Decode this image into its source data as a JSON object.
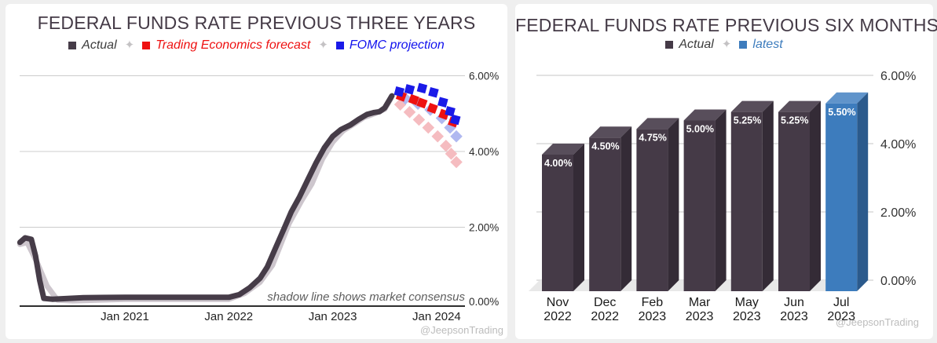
{
  "page": {
    "background_color": "#efefef",
    "card_color": "#ffffff",
    "watermark": "@JeepsonTrading",
    "legend_separator": "✦"
  },
  "chart_data": [
    {
      "type": "line",
      "title": "FEDERAL FUNDS RATE PREVIOUS THREE YEARS",
      "annotation": "shadow line shows market consensus",
      "legend": [
        {
          "label": "Actual",
          "marker_color": "#463c48",
          "text_color": "#3c3c3c"
        },
        {
          "label": "Trading Economics forecast",
          "marker_color": "#ee1111",
          "text_color": "#ee1111"
        },
        {
          "label": "FOMC projection",
          "marker_color": "#1a1ae8",
          "text_color": "#1111ee"
        }
      ],
      "xlabel": "",
      "ylabel": "",
      "ylim": [
        0,
        6.4
      ],
      "x_ticks": [
        {
          "year": 2021,
          "label": "Jan 2021"
        },
        {
          "year": 2022,
          "label": "Jan 2022"
        },
        {
          "year": 2023,
          "label": "Jan 2023"
        },
        {
          "year": 2024,
          "label": "Jan 2024"
        }
      ],
      "y_ticks": [
        {
          "pct": 6,
          "label": "6.00%"
        },
        {
          "pct": 4,
          "label": "4.00%"
        },
        {
          "pct": 2,
          "label": "2.00%"
        },
        {
          "pct": 0,
          "label": "0.00%"
        }
      ],
      "grid_color": "#cccccc",
      "axis_color": "#2e2e2e",
      "series": [
        {
          "name": "market consensus shadow",
          "kind": "line",
          "color": "#cdc6cd",
          "width": 7,
          "points": [
            [
              2019.99,
              1.55
            ],
            [
              2020.06,
              1.6
            ],
            [
              2020.15,
              1.1
            ],
            [
              2020.25,
              0.45
            ],
            [
              2020.35,
              0.08
            ],
            [
              2020.5,
              0.06
            ],
            [
              2021.0,
              0.1
            ],
            [
              2021.5,
              0.1
            ],
            [
              2022.0,
              0.1
            ],
            [
              2022.15,
              0.25
            ],
            [
              2022.3,
              0.55
            ],
            [
              2022.42,
              1.0
            ],
            [
              2022.5,
              1.55
            ],
            [
              2022.58,
              2.1
            ],
            [
              2022.7,
              2.7
            ],
            [
              2022.8,
              3.15
            ],
            [
              2022.9,
              3.8
            ],
            [
              2023.0,
              4.25
            ],
            [
              2023.1,
              4.55
            ],
            [
              2023.2,
              4.72
            ],
            [
              2023.3,
              4.9
            ],
            [
              2023.4,
              5.0
            ],
            [
              2023.5,
              5.12
            ],
            [
              2023.56,
              5.4
            ]
          ]
        },
        {
          "name": "Actual",
          "kind": "line",
          "color": "#463c48",
          "width": 7,
          "points": [
            [
              2019.99,
              1.6
            ],
            [
              2020.04,
              1.72
            ],
            [
              2020.1,
              1.68
            ],
            [
              2020.14,
              1.25
            ],
            [
              2020.18,
              0.6
            ],
            [
              2020.22,
              0.12
            ],
            [
              2020.3,
              0.1
            ],
            [
              2020.6,
              0.14
            ],
            [
              2021.0,
              0.15
            ],
            [
              2021.5,
              0.15
            ],
            [
              2022.0,
              0.15
            ],
            [
              2022.1,
              0.22
            ],
            [
              2022.2,
              0.4
            ],
            [
              2022.3,
              0.65
            ],
            [
              2022.37,
              0.95
            ],
            [
              2022.45,
              1.45
            ],
            [
              2022.53,
              1.95
            ],
            [
              2022.6,
              2.4
            ],
            [
              2022.68,
              2.8
            ],
            [
              2022.76,
              3.25
            ],
            [
              2022.84,
              3.7
            ],
            [
              2022.92,
              4.1
            ],
            [
              2023.0,
              4.4
            ],
            [
              2023.08,
              4.58
            ],
            [
              2023.17,
              4.7
            ],
            [
              2023.25,
              4.85
            ],
            [
              2023.33,
              4.98
            ],
            [
              2023.4,
              5.03
            ],
            [
              2023.45,
              5.05
            ],
            [
              2023.5,
              5.15
            ],
            [
              2023.54,
              5.33
            ],
            [
              2023.57,
              5.47
            ]
          ]
        },
        {
          "name": "market consensus forecast",
          "kind": "scatter",
          "marker": "diamond",
          "color": "#f5bcc0",
          "size": 11,
          "rot": 45,
          "points": [
            [
              2023.65,
              5.24
            ],
            [
              2023.74,
              5.04
            ],
            [
              2023.83,
              4.84
            ],
            [
              2023.92,
              4.63
            ],
            [
              2024.01,
              4.4
            ],
            [
              2024.09,
              4.15
            ],
            [
              2024.14,
              3.94
            ],
            [
              2024.19,
              3.72
            ]
          ]
        },
        {
          "name": "FOMC projection shadow",
          "kind": "scatter",
          "marker": "diamond",
          "color": "#b0b8f0",
          "size": 11,
          "rot": 45,
          "points": [
            [
              2023.7,
              5.4
            ],
            [
              2023.82,
              5.26
            ],
            [
              2023.94,
              5.1
            ],
            [
              2024.05,
              4.88
            ],
            [
              2024.13,
              4.63
            ],
            [
              2024.19,
              4.4
            ]
          ]
        },
        {
          "name": "Trading Economics forecast",
          "kind": "scatter",
          "marker": "square",
          "color": "#ee1111",
          "size": 11,
          "rot": 20,
          "points": [
            [
              2023.66,
              5.46
            ],
            [
              2023.78,
              5.37
            ],
            [
              2023.86,
              5.28
            ],
            [
              2023.96,
              5.14
            ],
            [
              2024.07,
              4.98
            ],
            [
              2024.16,
              4.78
            ]
          ]
        },
        {
          "name": "FOMC projection",
          "kind": "scatter",
          "marker": "square",
          "color": "#1a1ae8",
          "size": 11,
          "rot": 15,
          "points": [
            [
              2023.64,
              5.58
            ],
            [
              2023.74,
              5.64
            ],
            [
              2023.86,
              5.67
            ],
            [
              2023.97,
              5.56
            ],
            [
              2024.06,
              5.3
            ],
            [
              2024.13,
              5.06
            ],
            [
              2024.18,
              4.84
            ]
          ]
        }
      ]
    },
    {
      "type": "bar",
      "title": "FEDERAL FUNDS RATE PREVIOUS SIX MONTHS",
      "legend": [
        {
          "label": "Actual",
          "marker_color": "#453a47",
          "text_color": "#3c3c3c"
        },
        {
          "label": "latest",
          "marker_color": "#3d7cbd",
          "text_color": "#3d7cbd"
        }
      ],
      "categories": [
        [
          "Nov",
          "2022"
        ],
        [
          "Dec",
          "2022"
        ],
        [
          "Feb",
          "2023"
        ],
        [
          "Mar",
          "2023"
        ],
        [
          "May",
          "2023"
        ],
        [
          "Jun",
          "2023"
        ],
        [
          "Jul",
          "2023"
        ]
      ],
      "values": [
        4.0,
        4.5,
        4.75,
        5.0,
        5.25,
        5.25,
        5.5
      ],
      "bar_labels": [
        "4.00%",
        "4.50%",
        "4.75%",
        "5.00%",
        "5.25%",
        "5.25%",
        "5.50%"
      ],
      "latest_index": 6,
      "ylim": [
        0,
        6.4
      ],
      "y_ticks": [
        {
          "pct": 6,
          "label": "6.00%"
        },
        {
          "pct": 4,
          "label": "4.00%"
        },
        {
          "pct": 2,
          "label": "2.00%"
        },
        {
          "pct": 0,
          "label": "0.00%"
        }
      ],
      "grid_color": "#c6c6c6",
      "floor_color": "#e8e8e8",
      "bar_colors": {
        "actual": {
          "front": "#453a47",
          "top": "#584e5b",
          "side": "#342b36"
        },
        "latest": {
          "front": "#3d7cbd",
          "top": "#6094cb",
          "side": "#2b5a8c"
        }
      }
    }
  ]
}
